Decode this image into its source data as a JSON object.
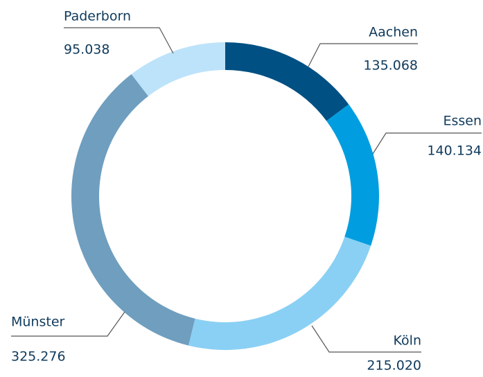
{
  "chart_data": {
    "type": "donut",
    "categories": [
      "Aachen",
      "Essen",
      "Köln",
      "Münster",
      "Paderborn"
    ],
    "values": [
      135068,
      140134,
      215020,
      325276,
      95038
    ],
    "value_labels": [
      "135.068",
      "140.134",
      "215.020",
      "325.276",
      "95.038"
    ],
    "colors": [
      "#005083",
      "#009ee0",
      "#8ad0f4",
      "#6f9ebf",
      "#bde3fa"
    ]
  }
}
